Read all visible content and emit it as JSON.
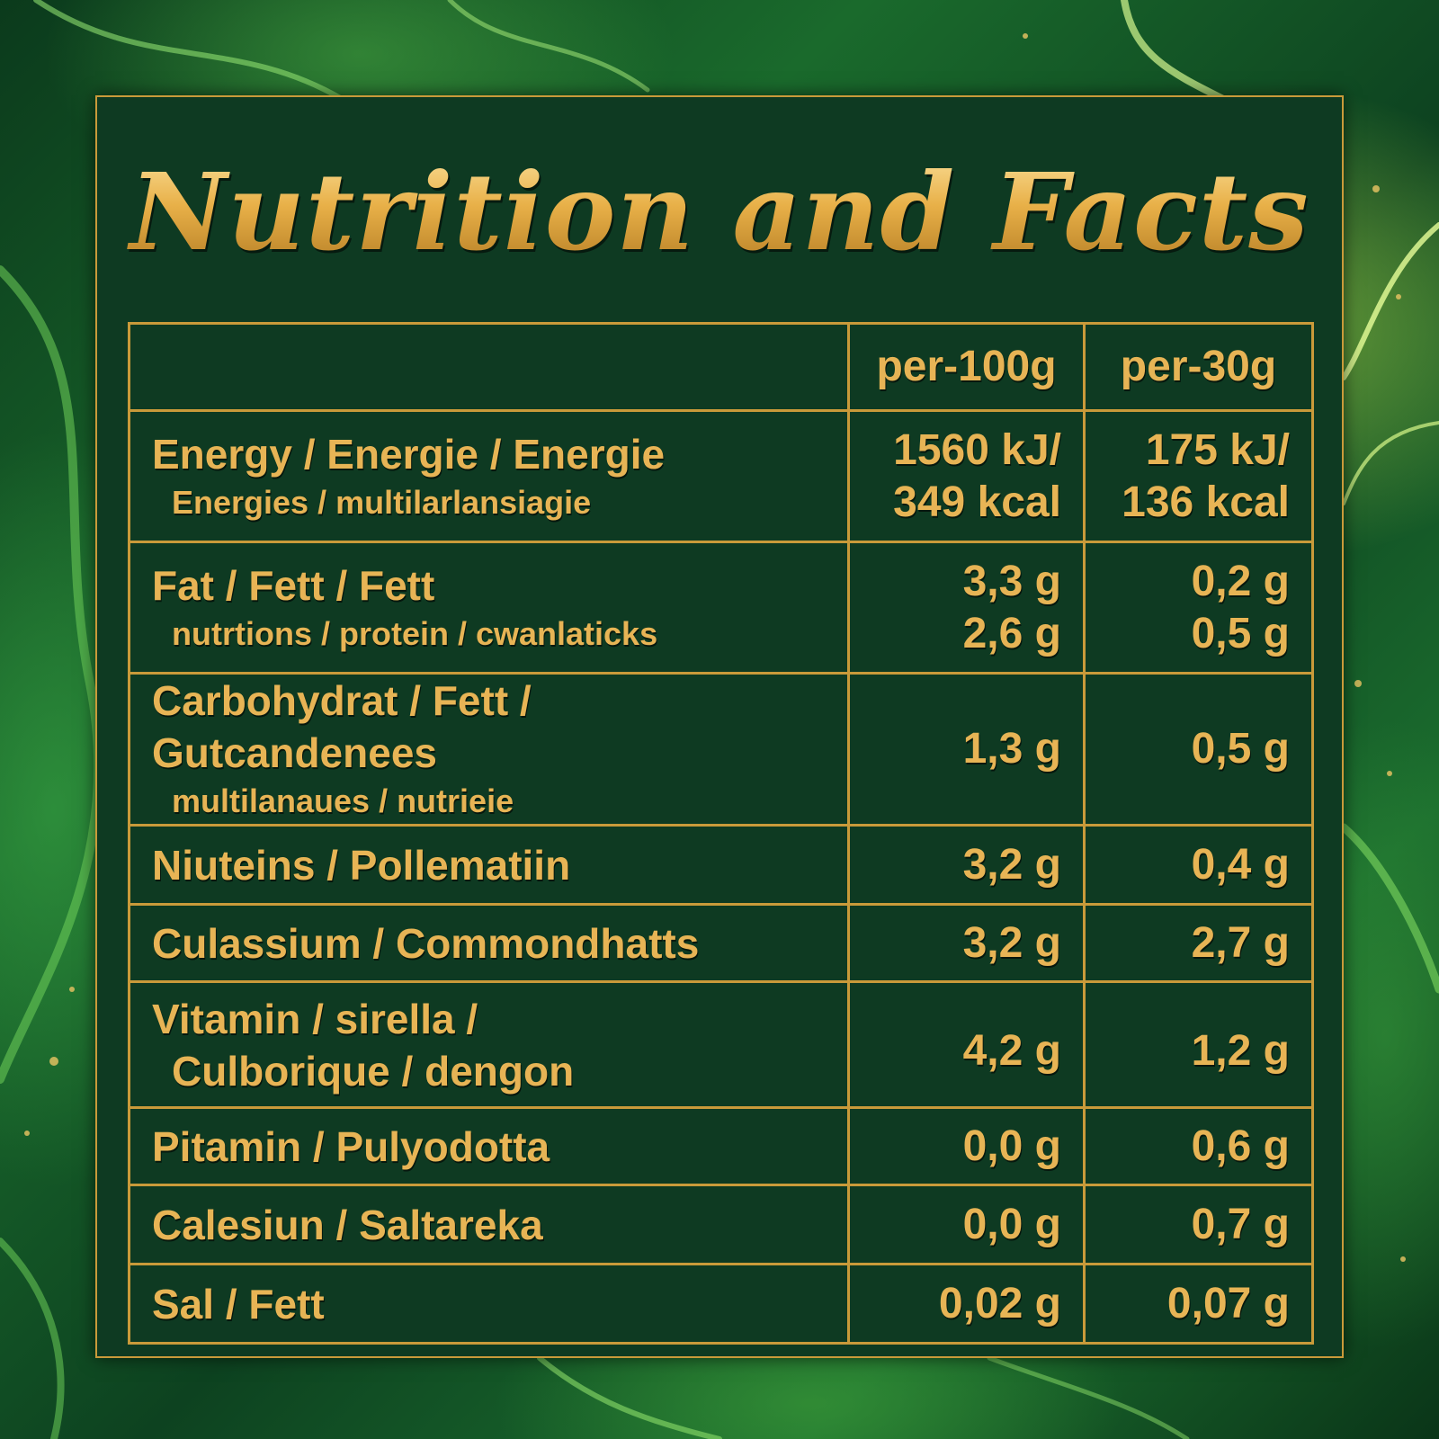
{
  "title": "Nutrition and Facts",
  "table": {
    "header": {
      "label": "",
      "per100": "per-100g",
      "per30": "per-30g"
    },
    "rows": [
      {
        "name": "Energy / Energie / Energie",
        "sub": "Energies / multilarlansiagie",
        "per100": [
          "1560 kJ/",
          "349 kcal"
        ],
        "per30": [
          "175 kJ/",
          "136 kcal"
        ]
      },
      {
        "name": "Fat / Fett / Fett",
        "sub": "nutrtions / protein / cwanlaticks",
        "per100": [
          "3,3 g",
          "2,6 g"
        ],
        "per30": [
          "0,2 g",
          "0,5 g"
        ]
      },
      {
        "name": "Carbohydrat / Fett / Gutcandenees",
        "sub": "multilanaues / nutrieie",
        "per100": [
          "1,3 g"
        ],
        "per30": [
          "0,5 g"
        ]
      },
      {
        "name": "Niuteins / Pollematiin",
        "per100": [
          "3,2 g"
        ],
        "per30": [
          "0,4 g"
        ]
      },
      {
        "name": "Culassium / Commondhatts",
        "per100": [
          "3,2 g"
        ],
        "per30": [
          "2,7 g"
        ]
      },
      {
        "name": "Vitamin / sirella /",
        "sub": "Culborique / dengon",
        "per100": [
          "4,2 g"
        ],
        "per30": [
          "1,2 g"
        ]
      },
      {
        "name": "Pitamin / Pulyodotta",
        "per100": [
          "0,0 g"
        ],
        "per30": [
          "0,6 g"
        ]
      },
      {
        "name": "Calesiun / Saltareka",
        "per100": [
          "0,0 g"
        ],
        "per30": [
          "0,7 g"
        ]
      },
      {
        "name": "Sal / Fett",
        "per100": [
          "0,02 g"
        ],
        "per30": [
          "0,07 g"
        ]
      }
    ]
  },
  "colors": {
    "panel": "#0e3a22",
    "gold": "#e7b455",
    "border": "#c99a3a"
  }
}
